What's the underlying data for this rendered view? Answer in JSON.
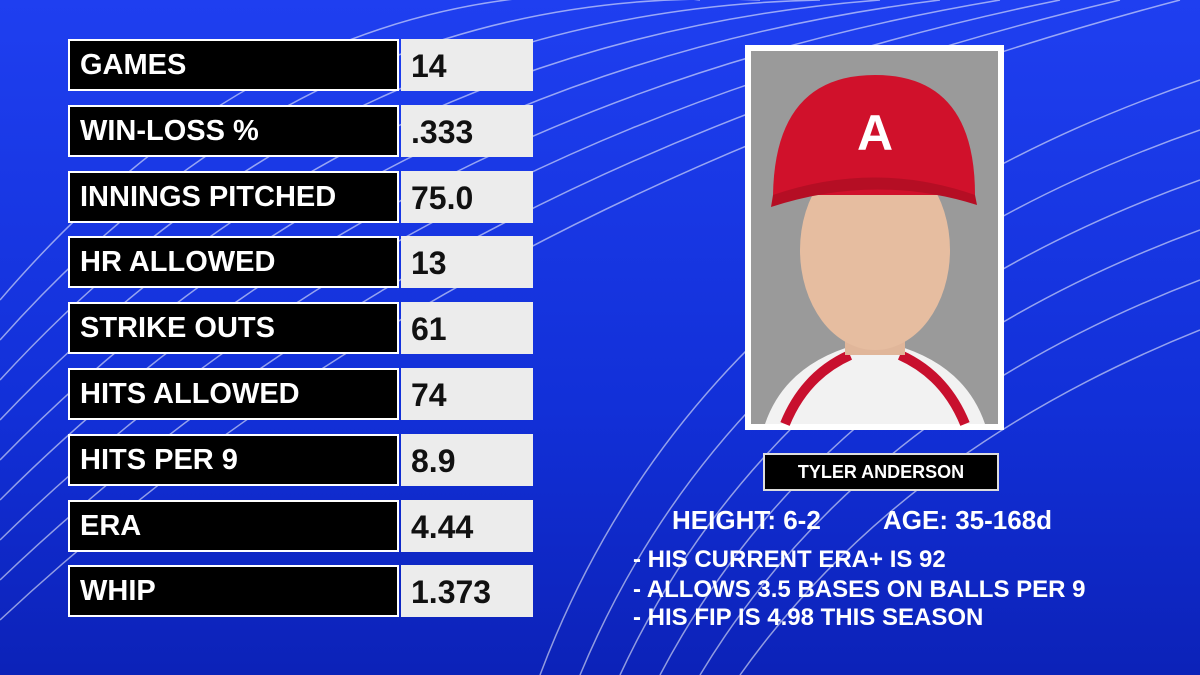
{
  "stats": [
    {
      "label": "GAMES",
      "value": "14"
    },
    {
      "label": "WIN-LOSS %",
      "value": ".333"
    },
    {
      "label": "INNINGS PITCHED",
      "value": "75.0"
    },
    {
      "label": "HR ALLOWED",
      "value": "13"
    },
    {
      "label": "STRIKE OUTS",
      "value": "61"
    },
    {
      "label": "HITS ALLOWED",
      "value": "74"
    },
    {
      "label": "HITS PER 9",
      "value": "8.9"
    },
    {
      "label": "ERA",
      "value": "4.44"
    },
    {
      "label": "WHIP",
      "value": "1.373"
    }
  ],
  "player": {
    "name": "TYLER ANDERSON",
    "height": "HEIGHT: 6-2",
    "age": "AGE: 35-168d"
  },
  "notes": [
    "- HIS CURRENT ERA+ IS 92",
    "- ALLOWS 3.5 BASES ON BALLS PER 9",
    "- HIS FIP IS 4.98 THIS SEASON"
  ]
}
